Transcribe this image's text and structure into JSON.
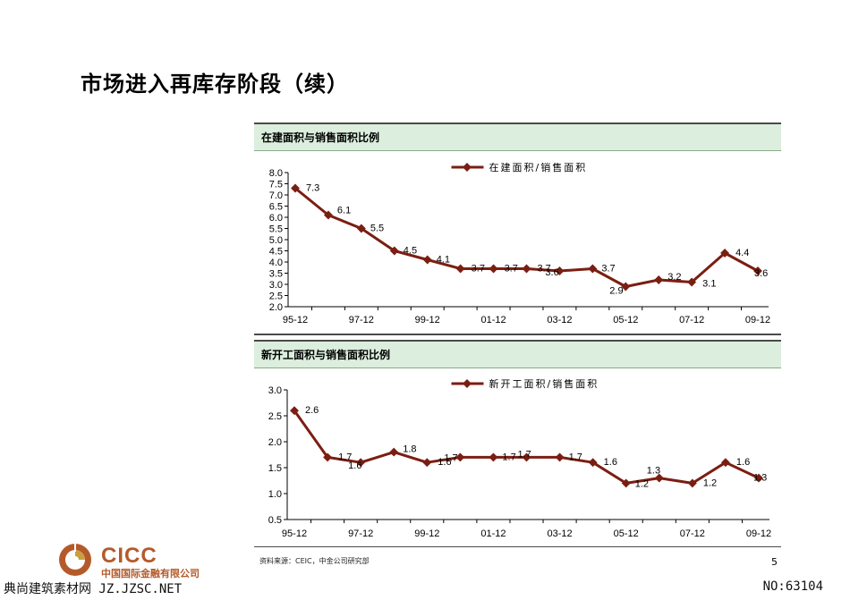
{
  "page": {
    "title": "市场进入再库存阶段（续）",
    "source": "资料来源：CEIC，中金公司研究部",
    "page_number": "5"
  },
  "logo": {
    "name": "CICC",
    "subtitle": "中国国际金融有限公司",
    "color": "#b45a2a"
  },
  "watermark": {
    "left": "典尚建筑素材网 JZ.JZSC.NET",
    "right": "NO:63104"
  },
  "colors": {
    "series": "#7b1e12",
    "panel_header": "#dceedd"
  },
  "chart_data": [
    {
      "type": "line",
      "header": "在建面积与销售面积比例",
      "legend": "在建面积/销售面积",
      "x": [
        "95-12",
        "96-12",
        "97-12",
        "98-12",
        "99-12",
        "00-12",
        "01-12",
        "02-12",
        "03-12",
        "04-12",
        "05-12",
        "06-12",
        "07-12",
        "08-12",
        "09-12"
      ],
      "xtick_labels": [
        "95-12",
        "97-12",
        "99-12",
        "01-12",
        "03-12",
        "05-12",
        "07-12",
        "09-12"
      ],
      "series": [
        {
          "values": [
            7.3,
            6.1,
            5.5,
            4.5,
            4.1,
            3.7,
            3.7,
            3.7,
            3.6,
            3.7,
            2.9,
            3.2,
            3.1,
            4.4,
            3.6
          ]
        }
      ],
      "data_labels": [
        "7.3",
        "6.1",
        "5.5",
        "4.5",
        "4.1",
        "3.7",
        "3.7",
        "3.7",
        "3.6",
        "3.7",
        "2.9",
        "3.2",
        "3.1",
        "4.4",
        "3.6"
      ],
      "ylim": [
        2.0,
        8.0
      ],
      "yticks": [
        "2.0",
        "2.5",
        "3.0",
        "3.5",
        "4.0",
        "4.5",
        "5.0",
        "5.5",
        "6.0",
        "6.5",
        "7.0",
        "7.5",
        "8.0"
      ],
      "grid": false,
      "legend_position": "top-center"
    },
    {
      "type": "line",
      "header": "新开工面积与销售面积比例",
      "legend": "新开工面积/销售面积",
      "x": [
        "95-12",
        "96-12",
        "97-12",
        "98-12",
        "99-12",
        "00-12",
        "01-12",
        "02-12",
        "03-12",
        "04-12",
        "05-12",
        "06-12",
        "07-12",
        "08-12",
        "09-12"
      ],
      "xtick_labels": [
        "95-12",
        "97-12",
        "99-12",
        "01-12",
        "03-12",
        "05-12",
        "07-12",
        "09-12"
      ],
      "series": [
        {
          "values": [
            2.6,
            1.7,
            1.6,
            1.8,
            1.6,
            1.7,
            1.7,
            1.7,
            1.7,
            1.6,
            1.2,
            1.3,
            1.2,
            1.6,
            1.3
          ]
        }
      ],
      "data_labels": [
        "2.6",
        "1.7",
        "1.6",
        "1.8",
        "1.6",
        "1.7",
        "1.7",
        "1.7",
        "1.7",
        "1.6",
        "1.2",
        "1.3",
        "1.2",
        "1.6",
        "1.3"
      ],
      "ylim": [
        0.5,
        3.0
      ],
      "yticks": [
        "0.5",
        "1.0",
        "1.5",
        "2.0",
        "2.5",
        "3.0"
      ],
      "grid": false,
      "legend_position": "top-center"
    }
  ]
}
